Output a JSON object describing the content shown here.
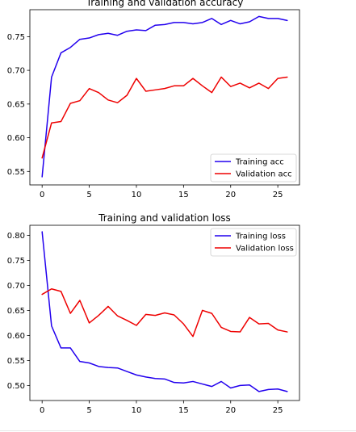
{
  "chart_data": [
    {
      "type": "line",
      "title": "Training and validation accuracy",
      "xlabel": "",
      "ylabel": "",
      "xlim": [
        -1.3,
        27.3
      ],
      "ylim": [
        0.53,
        0.79
      ],
      "xticks": [
        0,
        5,
        10,
        15,
        20,
        25
      ],
      "yticks": [
        0.55,
        0.6,
        0.65,
        0.7,
        0.75
      ],
      "ytick_labels": [
        "0.55",
        "0.60",
        "0.65",
        "0.70",
        "0.75"
      ],
      "grid": false,
      "legend_position": "lower-right",
      "x": [
        0,
        1,
        2,
        3,
        4,
        5,
        6,
        7,
        8,
        9,
        10,
        11,
        12,
        13,
        14,
        15,
        16,
        17,
        18,
        19,
        20,
        21,
        22,
        23,
        24,
        25,
        26
      ],
      "series": [
        {
          "name": "Training acc",
          "color": "#2200ee",
          "values": [
            0.542,
            0.69,
            0.726,
            0.734,
            0.746,
            0.748,
            0.753,
            0.755,
            0.752,
            0.758,
            0.76,
            0.759,
            0.767,
            0.768,
            0.771,
            0.771,
            0.769,
            0.771,
            0.777,
            0.768,
            0.774,
            0.769,
            0.772,
            0.78,
            0.777,
            0.777,
            0.774
          ]
        },
        {
          "name": "Validation acc",
          "color": "#ee0000",
          "values": [
            0.57,
            0.622,
            0.624,
            0.651,
            0.655,
            0.673,
            0.667,
            0.656,
            0.652,
            0.663,
            0.688,
            0.669,
            0.671,
            0.673,
            0.677,
            0.677,
            0.688,
            0.677,
            0.667,
            0.69,
            0.676,
            0.681,
            0.674,
            0.681,
            0.673,
            0.688,
            0.69
          ]
        }
      ]
    },
    {
      "type": "line",
      "title": "Training and validation loss",
      "xlabel": "",
      "ylabel": "",
      "xlim": [
        -1.3,
        27.3
      ],
      "ylim": [
        0.47,
        0.82
      ],
      "xticks": [
        0,
        5,
        10,
        15,
        20,
        25
      ],
      "yticks": [
        0.5,
        0.55,
        0.6,
        0.65,
        0.7,
        0.75,
        0.8
      ],
      "ytick_labels": [
        "0.50",
        "0.55",
        "0.60",
        "0.65",
        "0.70",
        "0.75",
        "0.80"
      ],
      "grid": false,
      "legend_position": "upper-right",
      "x": [
        0,
        1,
        2,
        3,
        4,
        5,
        6,
        7,
        8,
        9,
        10,
        11,
        12,
        13,
        14,
        15,
        16,
        17,
        18,
        19,
        20,
        21,
        22,
        23,
        24,
        25,
        26
      ],
      "series": [
        {
          "name": "Training loss",
          "color": "#2200ee",
          "values": [
            0.807,
            0.619,
            0.575,
            0.575,
            0.548,
            0.545,
            0.538,
            0.536,
            0.535,
            0.528,
            0.521,
            0.517,
            0.514,
            0.513,
            0.506,
            0.505,
            0.508,
            0.503,
            0.498,
            0.508,
            0.495,
            0.5,
            0.501,
            0.488,
            0.492,
            0.493,
            0.488
          ]
        },
        {
          "name": "Validation loss",
          "color": "#ee0000",
          "values": [
            0.682,
            0.693,
            0.688,
            0.644,
            0.67,
            0.625,
            0.64,
            0.658,
            0.639,
            0.63,
            0.62,
            0.642,
            0.64,
            0.645,
            0.641,
            0.623,
            0.598,
            0.65,
            0.644,
            0.616,
            0.608,
            0.607,
            0.636,
            0.623,
            0.624,
            0.611,
            0.607
          ]
        }
      ]
    }
  ]
}
